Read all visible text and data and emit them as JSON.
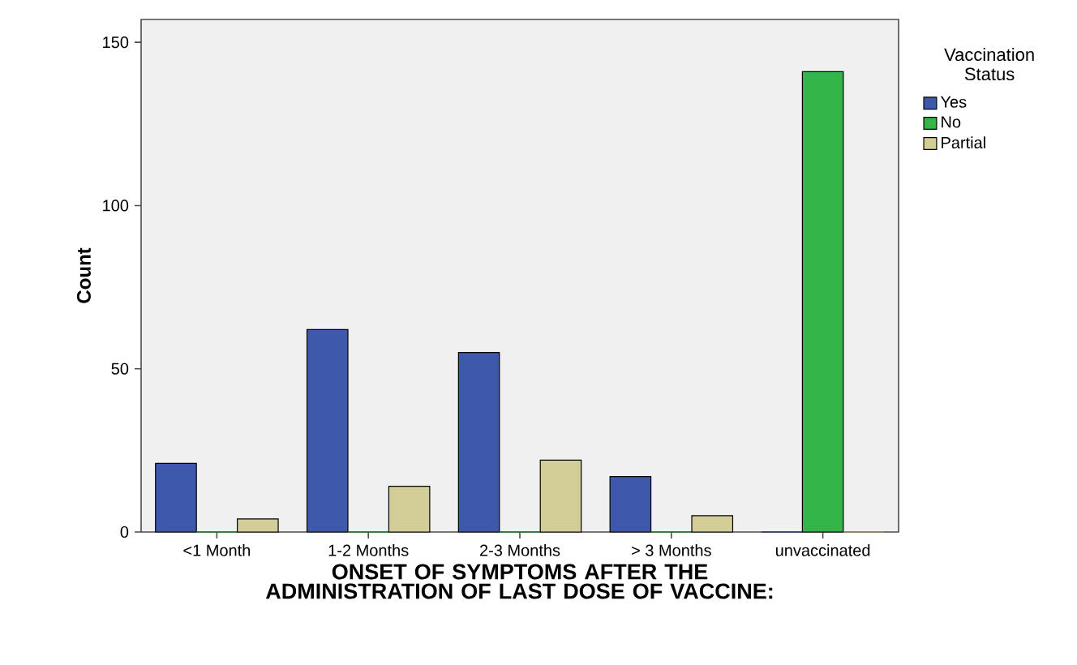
{
  "chart_data": {
    "type": "bar",
    "xlabel": "ONSET OF SYMPTOMS AFTER THE ADMINISTRATION OF LAST DOSE OF VACCINE:",
    "ylabel": "Count",
    "legend_title": "Vaccination Status",
    "categories": [
      "<1 Month",
      "1-2 Months",
      "2-3 Months",
      "> 3 Months",
      "unvaccinated"
    ],
    "series": [
      {
        "name": "Yes",
        "color": "#3e58ac",
        "values": [
          21,
          62,
          55,
          17,
          0
        ]
      },
      {
        "name": "No",
        "color": "#33b54a",
        "values": [
          0,
          0,
          0,
          0,
          141
        ]
      },
      {
        "name": "Partial",
        "color": "#d3ce97",
        "values": [
          4,
          14,
          22,
          5,
          0
        ]
      }
    ],
    "ylim": [
      0,
      157
    ],
    "yticks": [
      0,
      50,
      100,
      150
    ],
    "legend": "top right"
  }
}
